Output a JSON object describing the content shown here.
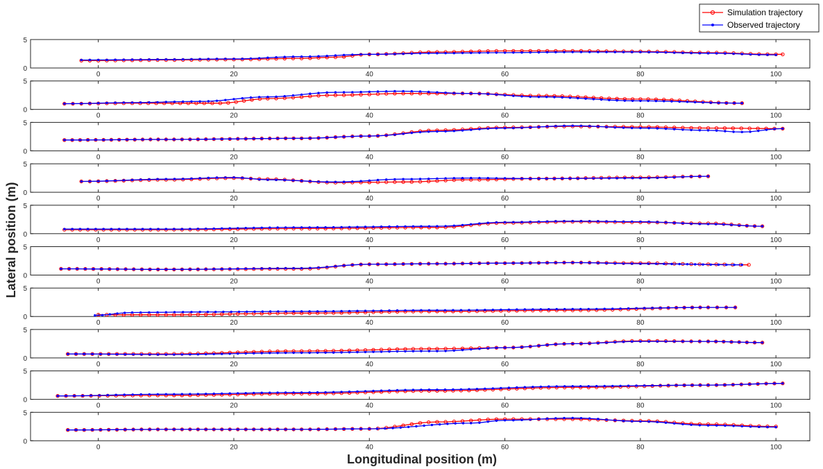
{
  "colors": {
    "simulation": "#ff0000",
    "observed": "#0000ff",
    "axes": "#262626",
    "background": "#ffffff"
  },
  "legend": {
    "placement": "top-right",
    "simulation_label": "Simulation trajectory",
    "observed_label": "Observed trajectory"
  },
  "xlabel": "Longitudinal position (m)",
  "ylabel": "Lateral position (m)",
  "chart_data": {
    "type": "line",
    "layout": "10 stacked subplots sharing x axis",
    "xlim": [
      -10,
      105
    ],
    "ylim": [
      0,
      5
    ],
    "xticks": [
      0,
      20,
      40,
      60,
      80,
      100
    ],
    "yticks": [
      0,
      5
    ],
    "grid": false,
    "markers": {
      "simulation": "open-circle",
      "observed": "filled-dot"
    },
    "series_names": [
      "Simulation trajectory",
      "Observed trajectory"
    ],
    "subplots": [
      {
        "simulation": [
          [
            -2.5,
            1.3
          ],
          [
            10,
            1.4
          ],
          [
            20,
            1.5
          ],
          [
            30,
            1.7
          ],
          [
            35,
            1.9
          ],
          [
            40,
            2.4
          ],
          [
            50,
            2.8
          ],
          [
            60,
            3.0
          ],
          [
            70,
            3.0
          ],
          [
            80,
            2.9
          ],
          [
            90,
            2.7
          ],
          [
            100,
            2.4
          ],
          [
            101,
            2.4
          ]
        ],
        "observed": [
          [
            -2.5,
            1.4
          ],
          [
            10,
            1.5
          ],
          [
            20,
            1.6
          ],
          [
            30,
            2.0
          ],
          [
            40,
            2.4
          ],
          [
            50,
            2.6
          ],
          [
            60,
            2.7
          ],
          [
            70,
            2.8
          ],
          [
            80,
            2.8
          ],
          [
            90,
            2.6
          ],
          [
            100,
            2.3
          ]
        ]
      },
      {
        "simulation": [
          [
            -5,
            1.0
          ],
          [
            5,
            1.1
          ],
          [
            18,
            1.1
          ],
          [
            25,
            1.9
          ],
          [
            35,
            2.5
          ],
          [
            45,
            2.8
          ],
          [
            55,
            2.8
          ],
          [
            65,
            2.4
          ],
          [
            80,
            1.8
          ],
          [
            95,
            1.1
          ]
        ],
        "observed": [
          [
            -5,
            1.0
          ],
          [
            5,
            1.2
          ],
          [
            15,
            1.4
          ],
          [
            25,
            2.2
          ],
          [
            35,
            3.0
          ],
          [
            45,
            3.2
          ],
          [
            55,
            2.8
          ],
          [
            65,
            2.2
          ],
          [
            80,
            1.5
          ],
          [
            95,
            1.1
          ]
        ]
      },
      {
        "simulation": [
          [
            -5,
            1.9
          ],
          [
            10,
            2.0
          ],
          [
            30,
            2.2
          ],
          [
            40,
            2.6
          ],
          [
            50,
            3.6
          ],
          [
            60,
            4.1
          ],
          [
            70,
            4.3
          ],
          [
            80,
            4.2
          ],
          [
            90,
            4.0
          ],
          [
            101,
            3.9
          ]
        ],
        "observed": [
          [
            -5,
            1.9
          ],
          [
            10,
            2.0
          ],
          [
            30,
            2.2
          ],
          [
            40,
            2.6
          ],
          [
            50,
            3.4
          ],
          [
            60,
            4.0
          ],
          [
            70,
            4.4
          ],
          [
            80,
            4.0
          ],
          [
            90,
            3.6
          ],
          [
            95,
            3.3
          ],
          [
            101,
            3.9
          ]
        ]
      },
      {
        "simulation": [
          [
            -2.5,
            1.9
          ],
          [
            10,
            2.2
          ],
          [
            20,
            2.5
          ],
          [
            25,
            2.3
          ],
          [
            35,
            1.7
          ],
          [
            45,
            1.8
          ],
          [
            55,
            2.2
          ],
          [
            65,
            2.4
          ],
          [
            80,
            2.6
          ],
          [
            90,
            2.8
          ]
        ],
        "observed": [
          [
            -2.5,
            1.9
          ],
          [
            10,
            2.3
          ],
          [
            20,
            2.6
          ],
          [
            25,
            2.2
          ],
          [
            35,
            1.8
          ],
          [
            45,
            2.3
          ],
          [
            55,
            2.5
          ],
          [
            65,
            2.4
          ],
          [
            80,
            2.5
          ],
          [
            90,
            2.8
          ]
        ]
      },
      {
        "simulation": [
          [
            -5,
            0.7
          ],
          [
            10,
            0.7
          ],
          [
            30,
            0.9
          ],
          [
            50,
            1.1
          ],
          [
            60,
            1.9
          ],
          [
            70,
            2.1
          ],
          [
            80,
            2.0
          ],
          [
            90,
            1.8
          ],
          [
            98,
            1.3
          ]
        ],
        "observed": [
          [
            -5,
            0.8
          ],
          [
            10,
            0.8
          ],
          [
            30,
            1.1
          ],
          [
            50,
            1.3
          ],
          [
            60,
            2.0
          ],
          [
            70,
            2.2
          ],
          [
            80,
            2.1
          ],
          [
            90,
            1.7
          ],
          [
            98,
            1.3
          ]
        ]
      },
      {
        "simulation": [
          [
            -5.5,
            1.1
          ],
          [
            10,
            1.0
          ],
          [
            30,
            1.1
          ],
          [
            40,
            1.9
          ],
          [
            50,
            2.0
          ],
          [
            60,
            2.1
          ],
          [
            70,
            2.2
          ],
          [
            80,
            2.1
          ],
          [
            90,
            1.9
          ],
          [
            96,
            1.8
          ]
        ],
        "observed": [
          [
            -5.5,
            1.1
          ],
          [
            10,
            1.0
          ],
          [
            30,
            1.2
          ],
          [
            40,
            1.9
          ],
          [
            50,
            2.0
          ],
          [
            60,
            2.1
          ],
          [
            70,
            2.2
          ],
          [
            80,
            2.0
          ],
          [
            95,
            1.8
          ]
        ]
      },
      {
        "simulation": [
          [
            0,
            0.3
          ],
          [
            10,
            0.3
          ],
          [
            30,
            0.6
          ],
          [
            50,
            0.9
          ],
          [
            70,
            1.1
          ],
          [
            90,
            1.6
          ],
          [
            94,
            1.6
          ]
        ],
        "observed": [
          [
            -0.5,
            0.2
          ],
          [
            5,
            0.7
          ],
          [
            15,
            0.8
          ],
          [
            30,
            0.9
          ],
          [
            50,
            1.1
          ],
          [
            70,
            1.3
          ],
          [
            90,
            1.6
          ],
          [
            94,
            1.6
          ]
        ]
      },
      {
        "simulation": [
          [
            -4.5,
            0.7
          ],
          [
            10,
            0.7
          ],
          [
            30,
            1.2
          ],
          [
            50,
            1.6
          ],
          [
            60,
            1.8
          ],
          [
            70,
            2.5
          ],
          [
            80,
            3.0
          ],
          [
            90,
            2.9
          ],
          [
            98,
            2.7
          ]
        ],
        "observed": [
          [
            -4.5,
            0.7
          ],
          [
            10,
            0.6
          ],
          [
            30,
            0.9
          ],
          [
            50,
            1.2
          ],
          [
            60,
            1.8
          ],
          [
            70,
            2.5
          ],
          [
            80,
            2.9
          ],
          [
            90,
            2.9
          ],
          [
            98,
            2.7
          ]
        ]
      },
      {
        "simulation": [
          [
            -6,
            0.6
          ],
          [
            10,
            0.7
          ],
          [
            30,
            1.0
          ],
          [
            50,
            1.5
          ],
          [
            70,
            2.1
          ],
          [
            90,
            2.5
          ],
          [
            101,
            2.8
          ]
        ],
        "observed": [
          [
            -6,
            0.6
          ],
          [
            10,
            0.9
          ],
          [
            30,
            1.2
          ],
          [
            50,
            1.7
          ],
          [
            70,
            2.3
          ],
          [
            90,
            2.5
          ],
          [
            101,
            2.8
          ]
        ]
      },
      {
        "simulation": [
          [
            -4.5,
            1.9
          ],
          [
            10,
            2.0
          ],
          [
            30,
            2.0
          ],
          [
            40,
            2.1
          ],
          [
            50,
            3.3
          ],
          [
            60,
            3.8
          ],
          [
            70,
            3.8
          ],
          [
            80,
            3.5
          ],
          [
            90,
            2.9
          ],
          [
            100,
            2.5
          ]
        ],
        "observed": [
          [
            -4.5,
            1.9
          ],
          [
            10,
            2.0
          ],
          [
            30,
            2.0
          ],
          [
            40,
            2.1
          ],
          [
            55,
            3.1
          ],
          [
            60,
            3.6
          ],
          [
            70,
            4.0
          ],
          [
            80,
            3.4
          ],
          [
            90,
            2.7
          ],
          [
            100,
            2.4
          ]
        ]
      }
    ]
  }
}
